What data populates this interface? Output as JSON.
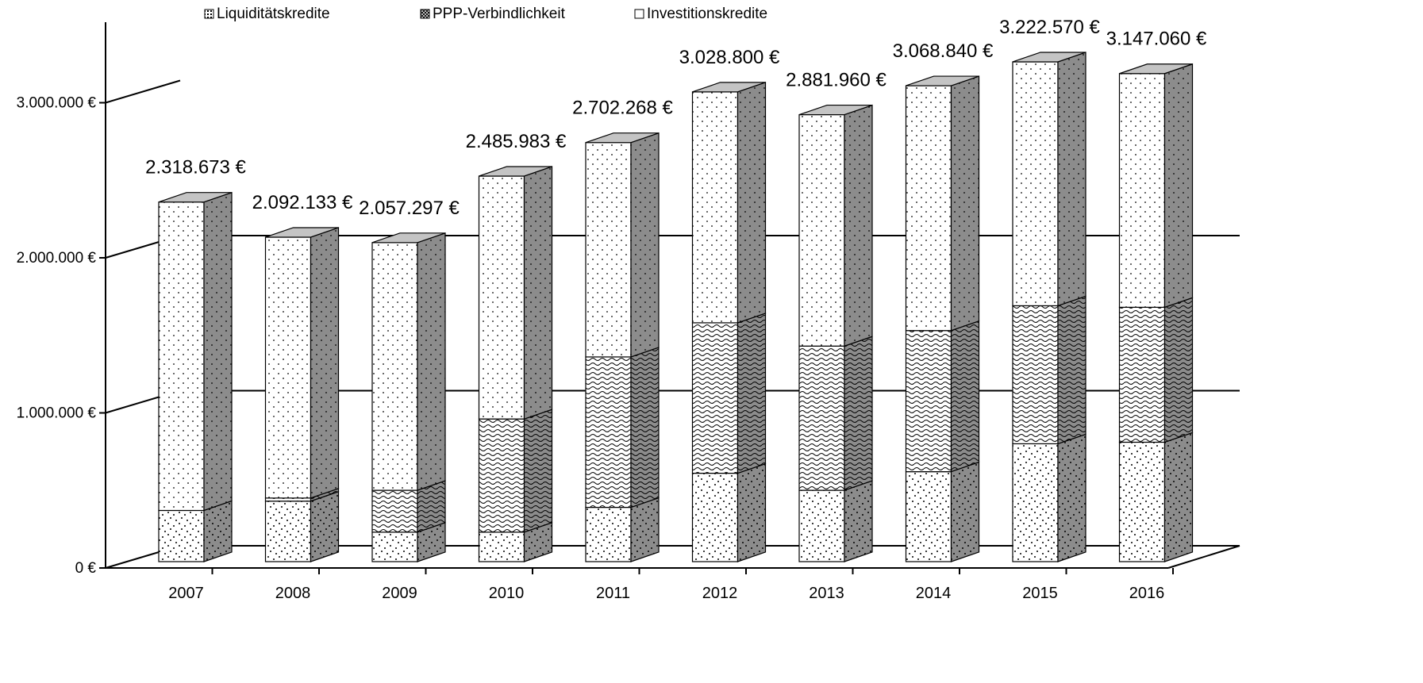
{
  "chart_data": {
    "type": "bar",
    "stacked": true,
    "three_d": true,
    "categories": [
      "2007",
      "2008",
      "2009",
      "2010",
      "2011",
      "2012",
      "2013",
      "2014",
      "2015",
      "2016"
    ],
    "series": [
      {
        "name": "Liquiditätskredite",
        "values": [
          330000,
          390000,
          190000,
          190000,
          350000,
          570000,
          460000,
          580000,
          760000,
          770000
        ]
      },
      {
        "name": "PPP-Verbindlichkeit",
        "values": [
          0,
          20000,
          270000,
          730000,
          970000,
          970000,
          930000,
          910000,
          890000,
          870000
        ]
      },
      {
        "name": "Investitionskredite",
        "values": [
          1988673,
          1682133,
          1597297,
          1565983,
          1382268,
          1488800,
          1491960,
          1578840,
          1572570,
          1507060
        ]
      }
    ],
    "totals": [
      2318673,
      2092133,
      2057297,
      2485983,
      2702268,
      3028800,
      2881960,
      3068840,
      3222570,
      3147060
    ],
    "total_labels": [
      "2.318.673 €",
      "2.092.133 €",
      "2.057.297 €",
      "2.485.983 €",
      "2.702.268 €",
      "3.028.800 €",
      "2.881.960 €",
      "3.068.840 €",
      "3.222.570 €",
      "3.147.060 €"
    ],
    "y_ticks": [
      0,
      1000000,
      2000000,
      3000000
    ],
    "y_tick_labels": [
      "0 €",
      "1.000.000 €",
      "2.000.000 €",
      "3.000.000 €"
    ],
    "ylim": [
      0,
      3000000
    ],
    "grid": true,
    "legend_position": "top",
    "colors": {
      "front": "#ffffff",
      "side": "#8c8c8c",
      "top": "#c4c4c4",
      "axis": "#000000"
    }
  }
}
